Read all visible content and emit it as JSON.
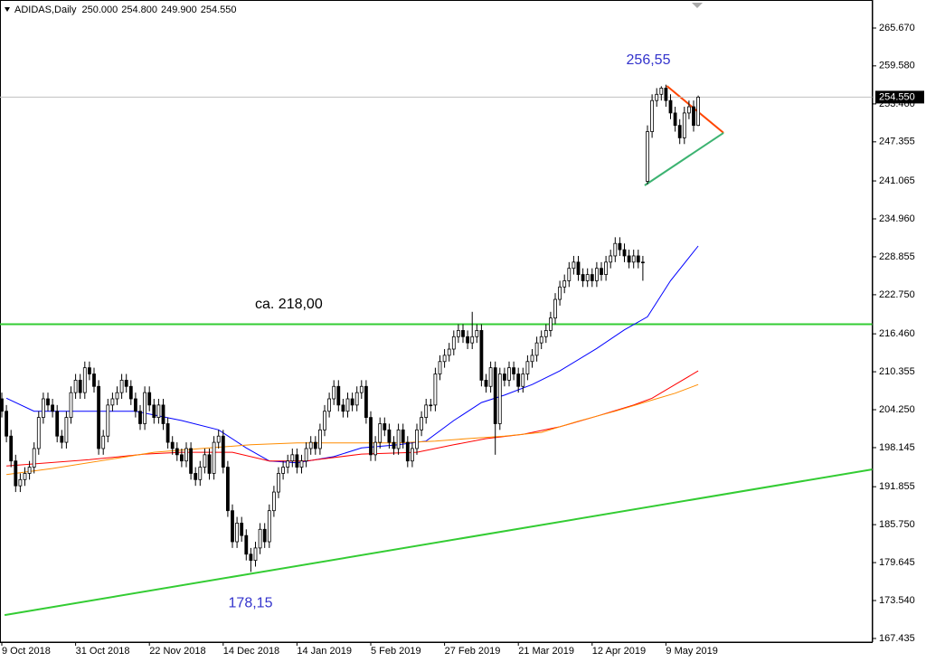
{
  "chart_data": {
    "type": "candlestick",
    "header": {
      "symbol": "ADIDAS,Daily",
      "ohlc_labels": [
        "250.000",
        "254.800",
        "249.900",
        "254.550"
      ]
    },
    "last_price_label": "254.550",
    "categories": [
      "9 Oct 2018",
      null,
      null,
      null,
      null,
      null,
      null,
      null,
      null,
      null,
      null,
      null,
      null,
      null,
      null,
      null,
      "31 Oct 2018",
      null,
      null,
      null,
      null,
      null,
      null,
      null,
      null,
      null,
      null,
      null,
      null,
      null,
      null,
      null,
      "22 Nov 2018",
      null,
      null,
      null,
      null,
      null,
      null,
      null,
      null,
      null,
      null,
      null,
      null,
      null,
      null,
      null,
      "14 Dec 2018",
      null,
      null,
      null,
      null,
      null,
      null,
      null,
      null,
      null,
      null,
      null,
      null,
      null,
      null,
      null,
      "14 Jan 2019",
      null,
      null,
      null,
      null,
      null,
      null,
      null,
      null,
      null,
      null,
      null,
      null,
      null,
      null,
      null,
      "5 Feb 2019",
      null,
      null,
      null,
      null,
      null,
      null,
      null,
      null,
      null,
      null,
      null,
      null,
      null,
      null,
      null,
      "27 Feb 2019",
      null,
      null,
      null,
      null,
      null,
      null,
      null,
      null,
      null,
      null,
      null,
      null,
      null,
      null,
      null,
      "21 Mar 2019",
      null,
      null,
      null,
      null,
      null,
      null,
      null,
      null,
      null,
      null,
      null,
      null,
      null,
      null,
      null,
      "12 Apr 2019",
      null,
      null,
      null,
      null,
      null,
      null,
      null,
      null,
      null,
      null,
      null,
      null,
      null,
      null,
      null,
      "9 May 2019",
      null,
      null,
      null,
      null,
      null,
      null,
      null
    ],
    "candles": {
      "open": [
        206,
        204,
        200,
        196,
        192,
        193,
        194,
        195,
        198,
        203,
        206,
        205,
        204,
        200,
        199,
        203,
        207,
        209,
        207,
        211,
        210,
        208,
        198,
        200,
        205,
        206,
        207,
        209,
        208,
        206,
        204,
        202,
        207,
        205,
        203,
        205,
        202,
        199,
        198,
        197,
        196,
        198,
        194,
        193,
        195,
        197,
        194,
        199,
        200,
        195,
        188,
        183,
        186,
        184,
        181,
        180,
        182,
        185,
        183,
        188,
        191,
        194,
        195,
        196,
        197,
        195,
        196,
        198,
        199,
        198,
        201,
        204,
        206,
        208,
        205,
        204,
        206,
        205,
        207,
        208,
        203,
        197,
        199,
        202,
        201,
        199,
        198,
        201,
        199,
        196,
        198,
        201,
        203,
        205,
        205,
        210,
        212,
        213,
        214,
        216,
        217,
        216,
        215,
        216,
        217,
        209,
        208,
        211,
        202,
        210,
        209,
        211,
        210,
        208,
        210,
        212,
        213,
        215,
        216,
        217,
        219,
        222,
        224,
        225,
        227,
        228,
        226,
        225,
        226,
        225,
        227,
        226,
        228,
        229,
        231,
        230,
        229,
        228,
        229,
        228,
        241,
        249,
        254,
        255,
        256,
        254,
        252,
        250,
        248,
        252,
        253,
        250
      ],
      "high": [
        207,
        205,
        201,
        197,
        194,
        195,
        196,
        199,
        204,
        207,
        207,
        206,
        205,
        201,
        204,
        208,
        210,
        210,
        212,
        212,
        211,
        209,
        201,
        206,
        207,
        208,
        210,
        210,
        209,
        207,
        205,
        208,
        208,
        206,
        206,
        206,
        203,
        200,
        199,
        198,
        199,
        199,
        195,
        196,
        198,
        198,
        200,
        201,
        201,
        196,
        189,
        187,
        187,
        185,
        182,
        183,
        186,
        186,
        189,
        192,
        195,
        196,
        197,
        198,
        198,
        197,
        199,
        200,
        200,
        202,
        205,
        207,
        209,
        209,
        206,
        207,
        207,
        208,
        209,
        209,
        204,
        200,
        203,
        203,
        202,
        200,
        202,
        202,
        200,
        199,
        202,
        204,
        206,
        206,
        211,
        213,
        214,
        215,
        217,
        218,
        218,
        217,
        220,
        218,
        218,
        210,
        212,
        212,
        211,
        211,
        212,
        212,
        211,
        211,
        213,
        214,
        216,
        217,
        218,
        220,
        223,
        225,
        226,
        228,
        229,
        229,
        227,
        227,
        227,
        228,
        228,
        229,
        230,
        232,
        232,
        231,
        230,
        230,
        230,
        229,
        250,
        255,
        256,
        256.3,
        256.55,
        255,
        253,
        251,
        253,
        254,
        254,
        254.8
      ],
      "low": [
        203,
        199,
        195,
        191,
        191,
        192,
        193,
        194,
        197,
        202,
        204,
        203,
        199,
        198,
        198,
        202,
        206,
        206,
        206,
        209,
        207,
        197,
        197,
        199,
        204,
        205,
        206,
        207,
        205,
        203,
        201,
        201,
        204,
        202,
        202,
        201,
        198,
        197,
        196,
        195,
        195,
        193,
        192,
        192,
        194,
        193,
        193,
        198,
        194,
        187,
        182,
        182,
        183,
        180,
        178.15,
        179,
        181,
        182,
        182,
        187,
        190,
        193,
        194,
        195,
        194,
        194,
        195,
        197,
        197,
        197,
        200,
        203,
        205,
        204,
        203,
        203,
        204,
        204,
        206,
        202,
        196,
        196,
        198,
        200,
        198,
        197,
        197,
        198,
        195,
        195,
        197,
        200,
        202,
        204,
        204,
        209,
        211,
        212,
        213,
        215,
        215,
        214,
        214,
        215,
        208,
        207,
        207,
        197,
        201,
        208,
        208,
        209,
        207,
        207,
        209,
        211,
        212,
        214,
        215,
        216,
        218,
        221,
        223,
        224,
        226,
        225,
        224,
        224,
        224,
        224,
        225,
        225,
        227,
        228,
        229,
        228,
        227,
        227,
        227,
        225,
        240.5,
        248,
        253,
        254,
        253,
        251,
        249,
        247,
        247,
        251,
        249,
        249.9
      ],
      "close": [
        204,
        200,
        196,
        192,
        193,
        194,
        195,
        198,
        203,
        206,
        205,
        204,
        200,
        199,
        203,
        207,
        209,
        207,
        211,
        210,
        208,
        198,
        200,
        205,
        206,
        207,
        209,
        208,
        206,
        204,
        202,
        207,
        205,
        203,
        205,
        202,
        199,
        198,
        197,
        196,
        198,
        194,
        193,
        195,
        197,
        194,
        199,
        200,
        195,
        188,
        183,
        186,
        184,
        181,
        180,
        182,
        185,
        183,
        188,
        191,
        194,
        195,
        196,
        197,
        195,
        196,
        198,
        199,
        198,
        201,
        204,
        206,
        208,
        205,
        204,
        206,
        205,
        207,
        208,
        203,
        197,
        199,
        202,
        201,
        199,
        198,
        201,
        199,
        196,
        198,
        201,
        203,
        205,
        205,
        210,
        212,
        213,
        214,
        216,
        217,
        216,
        215,
        216,
        217,
        209,
        208,
        211,
        202,
        210,
        209,
        211,
        210,
        208,
        210,
        212,
        213,
        215,
        216,
        217,
        219,
        222,
        224,
        225,
        227,
        228,
        226,
        225,
        226,
        225,
        227,
        226,
        228,
        229,
        231,
        230,
        229,
        228,
        229,
        228,
        228,
        249,
        254,
        255,
        256,
        254,
        252,
        250,
        248,
        252,
        253,
        250,
        254.55
      ],
      "up_color": "#ffffff",
      "down_color": "#000000",
      "outline_color": "#000000"
    },
    "moving_averages": [
      {
        "color": "#0000ff",
        "x": [
          1,
          7,
          19,
          29,
          39,
          47,
          53,
          58,
          64,
          72,
          78,
          86,
          92,
          98,
          104,
          109,
          115,
          121,
          129,
          135,
          140,
          145,
          151
        ],
        "values": [
          206.1,
          204.0,
          204.0,
          204.0,
          202.5,
          201.0,
          198.1,
          196.0,
          195.7,
          196.7,
          198.1,
          198.6,
          199.2,
          202.5,
          205.4,
          206.6,
          208.3,
          210.5,
          214.1,
          217.1,
          219.2,
          225.0,
          230.6
        ]
      },
      {
        "color": "#ff0000",
        "x": [
          1,
          19,
          31,
          39,
          50,
          58,
          66,
          78,
          90,
          98,
          105,
          113,
          121,
          129,
          137,
          141,
          146,
          151
        ],
        "values": [
          195.2,
          196.2,
          197.1,
          197.4,
          197.4,
          196.0,
          196.0,
          197.1,
          197.4,
          198.6,
          199.6,
          200.3,
          201.5,
          203.2,
          205.0,
          206.1,
          208.3,
          210.5
        ]
      },
      {
        "color": "#ff8c00",
        "x": [
          1,
          11,
          23,
          33,
          45,
          54,
          64,
          74,
          86,
          94,
          101,
          109,
          117,
          125,
          133,
          141,
          146,
          151
        ],
        "values": [
          193.8,
          194.8,
          196.2,
          197.4,
          198.1,
          198.6,
          198.9,
          198.9,
          198.9,
          199.2,
          199.6,
          200.0,
          200.6,
          202.4,
          204.0,
          205.8,
          206.9,
          208.3
        ]
      }
    ],
    "levels": [
      {
        "value": 218,
        "color": "#33cc33",
        "label": "ca. 218,00"
      }
    ],
    "trendlines": [
      {
        "color": "#33cc33",
        "x": [
          0.6,
          188.8
        ],
        "values": [
          171.2,
          194.65
        ]
      },
      {
        "color": "#ff4500",
        "x": [
          144.2,
          156.5
        ],
        "values": [
          256.35,
          248.8
        ]
      },
      {
        "color": "#3cb371",
        "x": [
          139.4,
          156.5
        ],
        "values": [
          240.35,
          248.8
        ]
      }
    ],
    "annotations": [
      {
        "text": "256,55",
        "value": 256.55,
        "color": "#3333cc"
      },
      {
        "text": "178,15",
        "value": 178.15,
        "color": "#3333cc"
      }
    ],
    "ylim": [
      166.85,
      270.18
    ],
    "yticks": [
      {
        "value": 265.67,
        "label": "265.670"
      },
      {
        "value": 259.58,
        "label": "259.580"
      },
      {
        "value": 253.46,
        "label": "253.460"
      },
      {
        "value": 247.355,
        "label": "247.355"
      },
      {
        "value": 241.065,
        "label": "241.065"
      },
      {
        "value": 234.96,
        "label": "234.960"
      },
      {
        "value": 228.855,
        "label": "228.855"
      },
      {
        "value": 222.75,
        "label": "222.750"
      },
      {
        "value": 216.46,
        "label": "216.460"
      },
      {
        "value": 210.355,
        "label": "210.355"
      },
      {
        "value": 204.25,
        "label": "204.250"
      },
      {
        "value": 198.145,
        "label": "198.145"
      },
      {
        "value": 191.855,
        "label": "191.855"
      },
      {
        "value": 185.75,
        "label": "185.750"
      },
      {
        "value": 179.645,
        "label": "179.645"
      },
      {
        "value": 173.54,
        "label": "173.540"
      },
      {
        "value": 167.435,
        "label": "167.435"
      }
    ]
  }
}
